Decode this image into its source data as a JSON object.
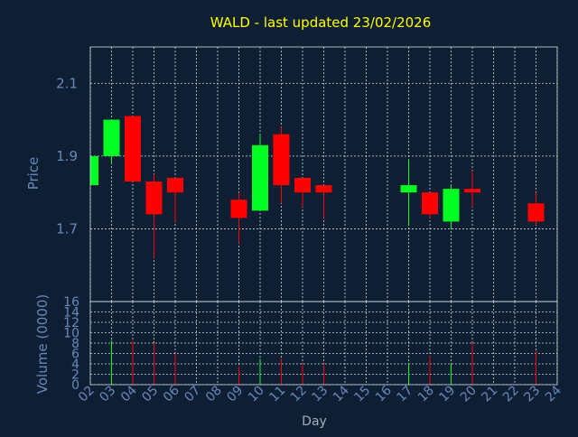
{
  "chart_data": {
    "type": "candlestick",
    "title": "WALD - last updated 23/02/2026",
    "price_panel": {
      "ylabel": "Price",
      "ylim": [
        1.5,
        2.2
      ],
      "yticks": [
        "1.7",
        "1.9",
        "2.1"
      ],
      "grid": true
    },
    "volume_panel": {
      "ylabel": "Volume (0000)",
      "ylim": [
        0,
        16
      ],
      "yticks": [
        "0",
        "2",
        "4",
        "6",
        "8",
        "10",
        "12",
        "14",
        "16"
      ],
      "grid": true
    },
    "xlabel": "Day",
    "x_tick_labels": [
      "02",
      "03",
      "04",
      "05",
      "06",
      "07",
      "08",
      "09",
      "10",
      "11",
      "12",
      "13",
      "14",
      "15",
      "16",
      "17",
      "18",
      "19",
      "20",
      "21",
      "22",
      "23",
      "24"
    ],
    "colors": {
      "up": "#00ff22",
      "down": "#ff0000",
      "title": "#ffff00",
      "axis_text": "#6688bb",
      "background": "#0f1f33"
    },
    "candles": [
      {
        "day": "02",
        "open": 1.82,
        "high": 1.9,
        "low": 1.82,
        "close": 1.9,
        "volume": 0
      },
      {
        "day": "03",
        "open": 1.9,
        "high": 2.0,
        "low": 1.88,
        "close": 2.0,
        "volume": 8.5
      },
      {
        "day": "04",
        "open": 2.01,
        "high": 2.01,
        "low": 1.83,
        "close": 1.83,
        "volume": 8.5
      },
      {
        "day": "05",
        "open": 1.83,
        "high": 1.85,
        "low": 1.62,
        "close": 1.74,
        "volume": 8
      },
      {
        "day": "06",
        "open": 1.84,
        "high": 1.84,
        "low": 1.72,
        "close": 1.8,
        "volume": 6
      },
      {
        "day": "09",
        "open": 1.78,
        "high": 1.8,
        "low": 1.66,
        "close": 1.73,
        "volume": 3.5
      },
      {
        "day": "10",
        "open": 1.75,
        "high": 1.96,
        "low": 1.75,
        "close": 1.93,
        "volume": 5
      },
      {
        "day": "11",
        "open": 1.96,
        "high": 1.98,
        "low": 1.77,
        "close": 1.82,
        "volume": 5
      },
      {
        "day": "12",
        "open": 1.84,
        "high": 1.84,
        "low": 1.76,
        "close": 1.8,
        "volume": 4
      },
      {
        "day": "13",
        "open": 1.82,
        "high": 1.82,
        "low": 1.73,
        "close": 1.8,
        "volume": 4
      },
      {
        "day": "17",
        "open": 1.8,
        "high": 1.89,
        "low": 1.71,
        "close": 1.82,
        "volume": 4
      },
      {
        "day": "18",
        "open": 1.8,
        "high": 1.8,
        "low": 1.73,
        "close": 1.74,
        "volume": 5.5
      },
      {
        "day": "19",
        "open": 1.72,
        "high": 1.82,
        "low": 1.7,
        "close": 1.81,
        "volume": 4
      },
      {
        "day": "20",
        "open": 1.81,
        "high": 1.86,
        "low": 1.76,
        "close": 1.8,
        "volume": 8
      },
      {
        "day": "23",
        "open": 1.77,
        "high": 1.8,
        "low": 1.71,
        "close": 1.72,
        "volume": 6.5
      }
    ]
  }
}
